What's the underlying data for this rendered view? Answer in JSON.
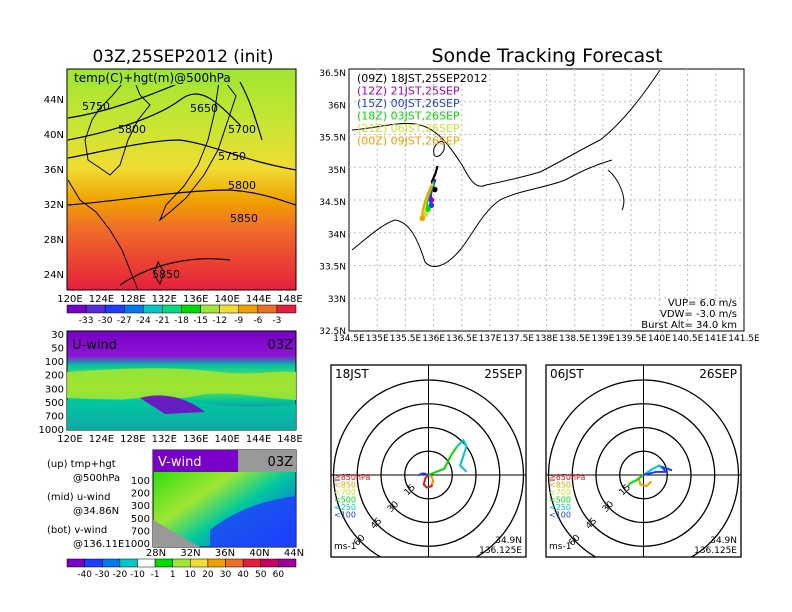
{
  "page_title": "Sonde Tracking Forecast",
  "colors": {
    "purple": "#a000c8",
    "blue": "#1e3cff",
    "green": "#00dc00",
    "yellow_green": "#a0e632",
    "orange": "#f0a000",
    "red": "#e61414",
    "cyan": "#00c8c8"
  },
  "chart_data": [
    {
      "type": "heatmap",
      "title": "03Z,25SEP2012 (init)",
      "label": "temp(C)+hgt(m)@500hPa",
      "x_ticks": [
        "120E",
        "124E",
        "128E",
        "132E",
        "136E",
        "140E",
        "144E",
        "148E"
      ],
      "y_ticks": [
        "44N",
        "40N",
        "36N",
        "32N",
        "28N",
        "24N"
      ],
      "contour_labels": [
        "5750",
        "5650",
        "5700",
        "5800",
        "5750",
        "5800",
        "5850",
        "5850"
      ],
      "colorbar_ticks": [
        "-33",
        "-30",
        "-27",
        "-24",
        "-21",
        "-18",
        "-15",
        "-12",
        "-9",
        "-6",
        "-3"
      ]
    },
    {
      "type": "heatmap",
      "title": "U-wind",
      "time": "03Z",
      "y_ticks": [
        "30",
        "50",
        "100",
        "200",
        "300",
        "500",
        "700",
        "1000"
      ],
      "x_ticks": [
        "120E",
        "124E",
        "128E",
        "132E",
        "136E",
        "140E",
        "144E",
        "148E"
      ]
    },
    {
      "type": "heatmap",
      "title": "V-wind",
      "time": "03Z",
      "y_ticks": [
        "100",
        "200",
        "300",
        "500",
        "700",
        "1000"
      ],
      "x_ticks": [
        "28N",
        "32N",
        "36N",
        "40N",
        "44N"
      ],
      "colorbar_ticks": [
        "-40",
        "-30",
        "-20",
        "-10",
        "-1",
        "1",
        "10",
        "20",
        "30",
        "40",
        "50",
        "60"
      ]
    },
    {
      "type": "line",
      "title": "Sonde Tracking Forecast",
      "x_ticks": [
        "134.5E",
        "135E",
        "135.5E",
        "136E",
        "136.5E",
        "137E",
        "137.5E",
        "138E",
        "138.5E",
        "139E",
        "139.5E",
        "140E",
        "140.5E",
        "141E",
        "141.5E"
      ],
      "y_ticks": [
        "36.5N",
        "36N",
        "35.5N",
        "35N",
        "34.5N",
        "34N",
        "33.5N",
        "33N",
        "32.5N"
      ],
      "xlim": [
        134.5,
        141.5
      ],
      "ylim": [
        32.5,
        36.5
      ],
      "legend": [
        "(09Z)  18JST,25SEP2012",
        "(12Z)  21JST,25SEP",
        "(15Z)  00JST,26SEP",
        "(18Z)  03JST,26SEP",
        "(21Z)  06JST,26SEP",
        "(00Z)  09JST,26SEP"
      ],
      "info": [
        "VUP=  6.0  m/s",
        "VDW= -3.0  m/s",
        "Burst Alt=  34.0  km"
      ],
      "series": [
        {
          "name": "(09Z)  18JST,25SEP2012",
          "color": "#000000",
          "x": [
            136.07,
            136.05,
            136.03,
            136.0,
            135.97,
            135.98,
            136.02
          ],
          "y": [
            35.02,
            34.96,
            34.9,
            34.84,
            34.78,
            34.72,
            34.66
          ]
        },
        {
          "name": "(12Z)  21JST,25SEP",
          "color": "#a000c8",
          "x": [
            136.03,
            136.0,
            135.97,
            135.95,
            135.96
          ],
          "y": [
            34.82,
            34.74,
            34.66,
            34.58,
            34.5
          ]
        },
        {
          "name": "(15Z)  00JST,26SEP",
          "color": "#1e3cff",
          "x": [
            136.03,
            135.98,
            135.94,
            135.93,
            135.96
          ],
          "y": [
            34.8,
            34.7,
            34.6,
            34.5,
            34.42
          ]
        },
        {
          "name": "(18Z)  03JST,26SEP",
          "color": "#00dc00",
          "x": [
            136.0,
            135.95,
            135.9,
            135.88,
            135.9
          ],
          "y": [
            34.78,
            34.66,
            34.54,
            34.44,
            34.36
          ]
        },
        {
          "name": "(21Z)  06JST,26SEP",
          "color": "#c8e632",
          "x": [
            135.98,
            135.92,
            135.87,
            135.84,
            135.85
          ],
          "y": [
            34.75,
            34.62,
            34.5,
            34.38,
            34.28
          ]
        },
        {
          "name": "(00Z)  09JST,26SEP",
          "color": "#f0a000",
          "x": [
            135.96,
            135.89,
            135.84,
            135.8,
            135.8
          ],
          "y": [
            34.72,
            34.58,
            34.45,
            34.32,
            34.22
          ]
        }
      ]
    },
    {
      "type": "line",
      "title": "18JST",
      "date": "25SEP",
      "unit": "ms-1",
      "ring_labels": [
        "15",
        "30",
        "45",
        "60"
      ],
      "level_legend": [
        "≧850hPa",
        "<850",
        "<700",
        "<500",
        "<250",
        "<100"
      ],
      "location": [
        "34.9N",
        "136.125E"
      ],
      "series": [
        {
          "name": "≧850hPa",
          "color": "#e61414",
          "x": [
            0,
            -2,
            -3,
            -1,
            2,
            3
          ],
          "y": [
            0,
            -2,
            -6,
            -8,
            -7,
            -3
          ]
        },
        {
          "name": "<850",
          "color": "#f0a000",
          "x": [
            0,
            2,
            3,
            2
          ],
          "y": [
            0,
            -1,
            -4,
            -6
          ]
        },
        {
          "name": "<500",
          "color": "#00dc00",
          "x": [
            0,
            5,
            10,
            14,
            18
          ],
          "y": [
            0,
            2,
            4,
            12,
            18
          ]
        },
        {
          "name": "<250",
          "color": "#00c8c8",
          "x": [
            18,
            22,
            24,
            22,
            20,
            24
          ],
          "y": [
            18,
            22,
            18,
            12,
            6,
            2
          ]
        },
        {
          "name": "<100",
          "color": "#1e3cff",
          "x": [
            0,
            -3,
            -6,
            -4
          ],
          "y": [
            0,
            1,
            0,
            1
          ]
        }
      ]
    },
    {
      "type": "line",
      "title": "06JST",
      "date": "26SEP",
      "unit": "ms-1",
      "ring_labels": [
        "15",
        "30",
        "45",
        "60"
      ],
      "level_legend": [
        "≧850hPa",
        "<850",
        "<700",
        "<500",
        "<250",
        "<100"
      ],
      "location": [
        "34.9N",
        "136.125E"
      ],
      "series": [
        {
          "name": "<850",
          "color": "#f0a000",
          "x": [
            0,
            -3,
            -2,
            2,
            5
          ],
          "y": [
            0,
            -2,
            -6,
            -7,
            -4
          ]
        },
        {
          "name": "<500",
          "color": "#00dc00",
          "x": [
            0,
            -4,
            -8,
            -10
          ],
          "y": [
            0,
            -3,
            -5,
            -7
          ]
        },
        {
          "name": "<250",
          "color": "#00c8c8",
          "x": [
            0,
            6,
            10,
            12
          ],
          "y": [
            0,
            4,
            6,
            4
          ]
        },
        {
          "name": "<100",
          "color": "#1e3cff",
          "x": [
            0,
            8,
            14,
            12,
            18
          ],
          "y": [
            0,
            2,
            2,
            5,
            3
          ]
        }
      ]
    }
  ],
  "side_labels": [
    "(up) tmp+hgt",
    "@500hPa",
    "(mid) u-wind",
    "@34.86N",
    "(bot) v-wind",
    "@136.11E"
  ]
}
